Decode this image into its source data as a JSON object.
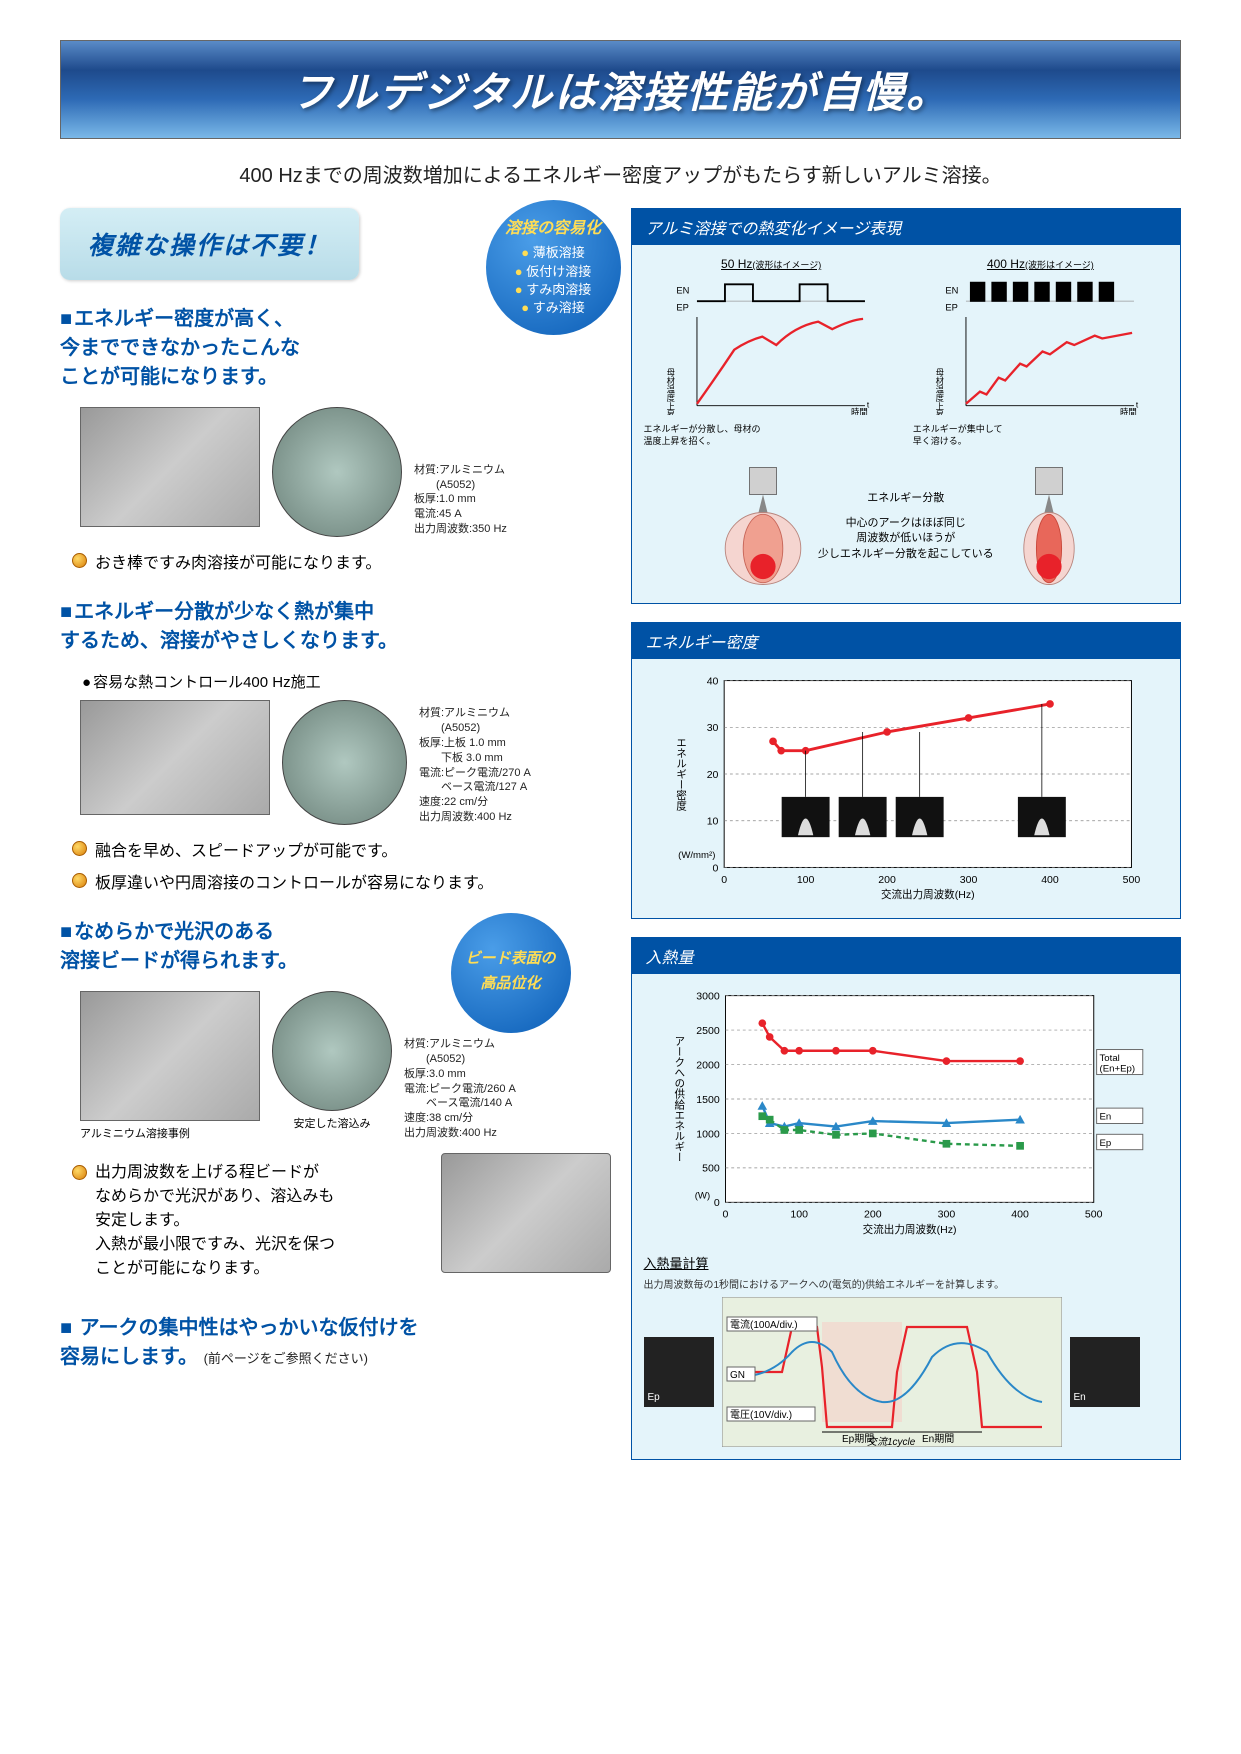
{
  "title": "フルデジタルは溶接性能が自慢。",
  "subtitle": "400 Hzまでの周波数増加によるエネルギー密度アップがもたらす新しいアルミ溶接。",
  "noComplexOp": "複雑な操作は不要！",
  "badge1": {
    "title": "溶接の容易化",
    "items": [
      "薄板溶接",
      "仮付け溶接",
      "すみ肉溶接",
      "すみ溶接"
    ]
  },
  "badge2": {
    "title": "ビード表面の",
    "sub": "高品位化"
  },
  "left": {
    "s1": {
      "heading": "エネルギー密度が高く、\n今までできなかったこんな\nことが可能になります。",
      "specs": "材質:アルミニウム\n　　(A5052)\n板厚:1.0 mm\n電流:45 A\n出力周波数:350 Hz",
      "bullet": "おき棒ですみ肉溶接が可能になります。"
    },
    "s2": {
      "heading": "エネルギー分散が少なく熱が集中\nするため、溶接がやさしくなります。",
      "sub": "容易な熱コントロール400 Hz施工",
      "specs": "材質:アルミニウム\n　　(A5052)\n板厚:上板 1.0 mm\n　　下板 3.0 mm\n電流:ピーク電流/270 A\n　　ベース電流/127 A\n速度:22 cm/分\n出力周波数:400 Hz",
      "b1": "融合を早め、スピードアップが可能です。",
      "b2": "板厚違いや円周溶接のコントロールが容易になります。"
    },
    "s3": {
      "heading": "なめらかで光沢のある\n溶接ビードが得られます。",
      "caption1": "アルミニウム溶接事例",
      "caption2": "安定した溶込み",
      "specs": "材質:アルミニウム\n　　(A5052)\n板厚:3.0 mm\n電流:ピーク電流/260 A\n　　ベース電流/140 A\n速度:38 cm/分\n出力周波数:400 Hz",
      "b1": "出力周波数を上げる程ビードが\nなめらかで光沢があり、溶込みも\n安定します。\n入熱が最小限ですみ、光沢を保つ\nことが可能になります。"
    },
    "s4": {
      "heading": "アークの集中性はやっかいな仮付けを\n容易にします。",
      "note": "(前ページをご参照ください)"
    }
  },
  "right": {
    "p1": {
      "title": "アルミ溶接での熱変化イメージ表現",
      "l50": "50 Hz",
      "l400": "400 Hz",
      "wave": "(波形はイメージ)",
      "en": "EN",
      "ep": "EP",
      "ylab": "母材温度上昇",
      "xlab": "時間",
      "t": "t",
      "note1": "エネルギーが分散し、母材の\n温度上昇を招く。",
      "note2": "エネルギーが集中して\n早く溶ける。",
      "etext1": "エネルギー分散",
      "etext2": "中心のアークはほぼ同じ\n周波数が低いほうが\n少しエネルギー分散を起こしている"
    },
    "p2": {
      "title": "エネルギー密度",
      "ylab": "エネルギー密度",
      "yunit": "(W/mm²)",
      "xlab": "交流出力周波数(Hz)",
      "yticks": [
        0,
        10,
        20,
        30,
        40
      ],
      "xticks": [
        0,
        100,
        200,
        300,
        400,
        500
      ],
      "data_x": [
        60,
        70,
        100,
        200,
        300,
        400
      ],
      "data_y": [
        27,
        25,
        25,
        29,
        32,
        35
      ],
      "line_color": "#e8222a",
      "bg": "#e4f4fa"
    },
    "p3": {
      "title": "入熱量",
      "ylab": "アークへの供給エネルギー",
      "yunit": "(W)",
      "xlab": "交流出力周波数(Hz)",
      "yticks": [
        0,
        500,
        1000,
        1500,
        2000,
        2500,
        3000
      ],
      "xticks": [
        0,
        100,
        200,
        300,
        400,
        500
      ],
      "series": {
        "total": {
          "label": "Total\n(En+Ep)",
          "color": "#e8222a",
          "x": [
            50,
            60,
            80,
            100,
            150,
            200,
            300,
            400
          ],
          "y": [
            2600,
            2400,
            2200,
            2200,
            2200,
            2200,
            2050,
            2050
          ]
        },
        "en": {
          "label": "En",
          "color": "#2a88c8",
          "x": [
            50,
            60,
            80,
            100,
            150,
            200,
            300,
            400
          ],
          "y": [
            1400,
            1150,
            1100,
            1150,
            1100,
            1180,
            1150,
            1200
          ]
        },
        "ep": {
          "label": "Ep",
          "color": "#2a9a4a",
          "x": [
            50,
            60,
            80,
            100,
            150,
            200,
            300,
            400
          ],
          "y": [
            1250,
            1200,
            1050,
            1050,
            980,
            1000,
            850,
            820
          ]
        }
      }
    },
    "p4": {
      "title": "入熱量計算",
      "sub": "出力周波数毎の1秒間におけるアークへの(電気的)供給エネルギーを計算します。",
      "l1": "電流(100A/div.)",
      "l2": "GN",
      "l3": "電圧(10V/div.)",
      "ep": "Ep",
      "en": "En",
      "epspan": "Ep期間",
      "enspan": "En期間",
      "cycle": "交流1cycle"
    }
  }
}
